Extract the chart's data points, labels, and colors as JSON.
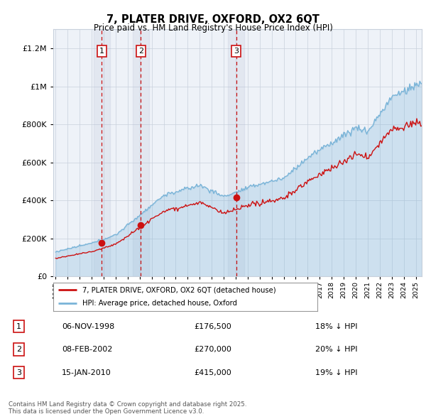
{
  "title": "7, PLATER DRIVE, OXFORD, OX2 6QT",
  "subtitle": "Price paid vs. HM Land Registry's House Price Index (HPI)",
  "legend_line1": "7, PLATER DRIVE, OXFORD, OX2 6QT (detached house)",
  "legend_line2": "HPI: Average price, detached house, Oxford",
  "footer": "Contains HM Land Registry data © Crown copyright and database right 2025.\nThis data is licensed under the Open Government Licence v3.0.",
  "transactions": [
    {
      "num": 1,
      "date": "06-NOV-1998",
      "price": 176500,
      "hpi_rel": "18% ↓ HPI",
      "year": 1998.85
    },
    {
      "num": 2,
      "date": "08-FEB-2002",
      "price": 270000,
      "hpi_rel": "20% ↓ HPI",
      "year": 2002.1
    },
    {
      "num": 3,
      "date": "15-JAN-2010",
      "price": 415000,
      "hpi_rel": "19% ↓ HPI",
      "year": 2010.04
    }
  ],
  "hpi_color": "#7ab4d8",
  "price_color": "#cc1111",
  "bg_color": "#eef2f8",
  "grid_color": "#c8d0dc",
  "ylim": [
    0,
    1300000
  ],
  "xlim_start": 1994.8,
  "xlim_end": 2025.5
}
